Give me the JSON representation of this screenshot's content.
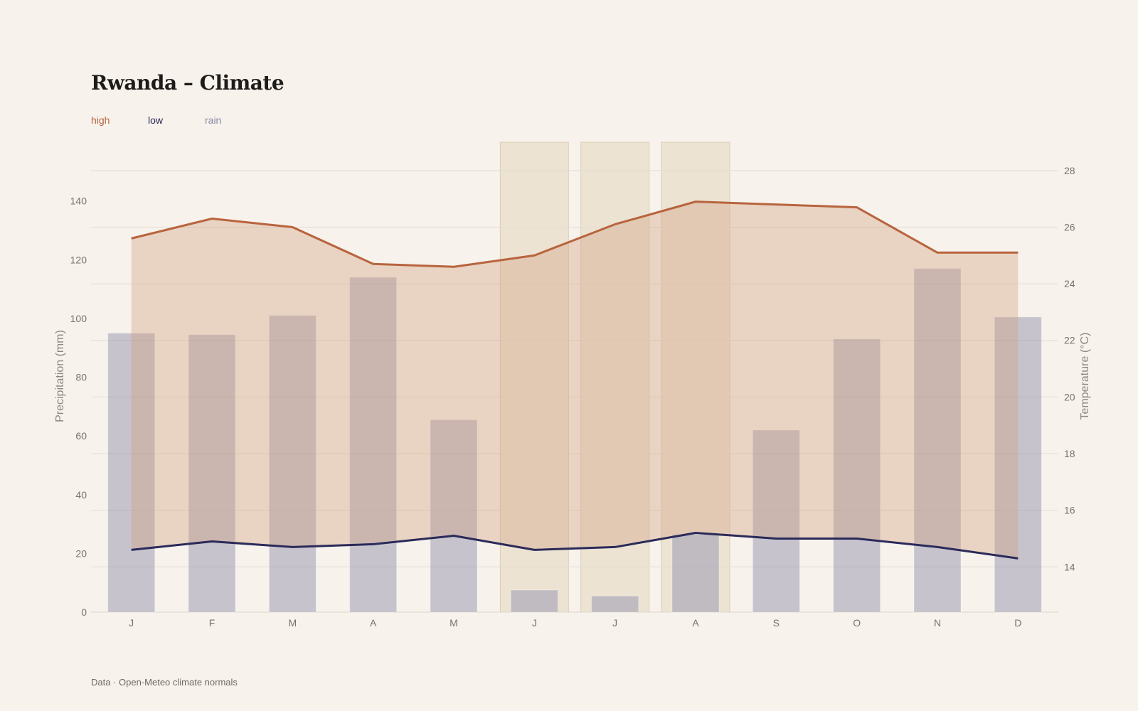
{
  "header": {
    "title": "Rwanda – Climate",
    "legend": {
      "high": "high",
      "low": "low",
      "rain": "rain"
    }
  },
  "footer": {
    "source": "Data · Open-Meteo climate normals"
  },
  "colors": {
    "high": "#b8643e",
    "low": "#2b2a5a",
    "rain": "#8a89a8",
    "band": "#d2a07e",
    "dry": "#e7dac6",
    "grid": "#e4dcd2"
  },
  "chart_data": {
    "type": "bar+line",
    "title": "Rwanda – Climate",
    "categories": [
      "J",
      "F",
      "M",
      "A",
      "M",
      "J",
      "J",
      "A",
      "S",
      "O",
      "N",
      "D"
    ],
    "series": [
      {
        "name": "rain",
        "type": "bar",
        "axis": "left",
        "values": [
          95,
          94.5,
          101,
          114,
          65.5,
          7.5,
          5.5,
          26.5,
          62,
          93,
          117,
          100.5
        ]
      },
      {
        "name": "high",
        "type": "line",
        "axis": "right",
        "values": [
          25.6,
          26.3,
          26.0,
          24.7,
          24.6,
          25.0,
          26.1,
          26.9,
          26.8,
          26.7,
          25.1,
          25.1
        ]
      },
      {
        "name": "low",
        "type": "line",
        "axis": "right",
        "values": [
          14.6,
          14.9,
          14.7,
          14.8,
          15.1,
          14.6,
          14.7,
          15.2,
          15.0,
          15.0,
          14.7,
          14.3
        ]
      }
    ],
    "dry_season_months": [
      5,
      6,
      7
    ],
    "ylabel_left": "Precipitation (mm)",
    "ylabel_right": "Temperature (°C)",
    "ylim_left": [
      0,
      160
    ],
    "ylim_right": [
      12.4,
      29
    ],
    "yticks_left": [
      0,
      20,
      40,
      60,
      80,
      100,
      120,
      140
    ],
    "yticks_right": [
      14,
      16,
      18,
      20,
      22,
      24,
      26,
      28
    ],
    "grid": true,
    "legend_position": "top-left"
  }
}
